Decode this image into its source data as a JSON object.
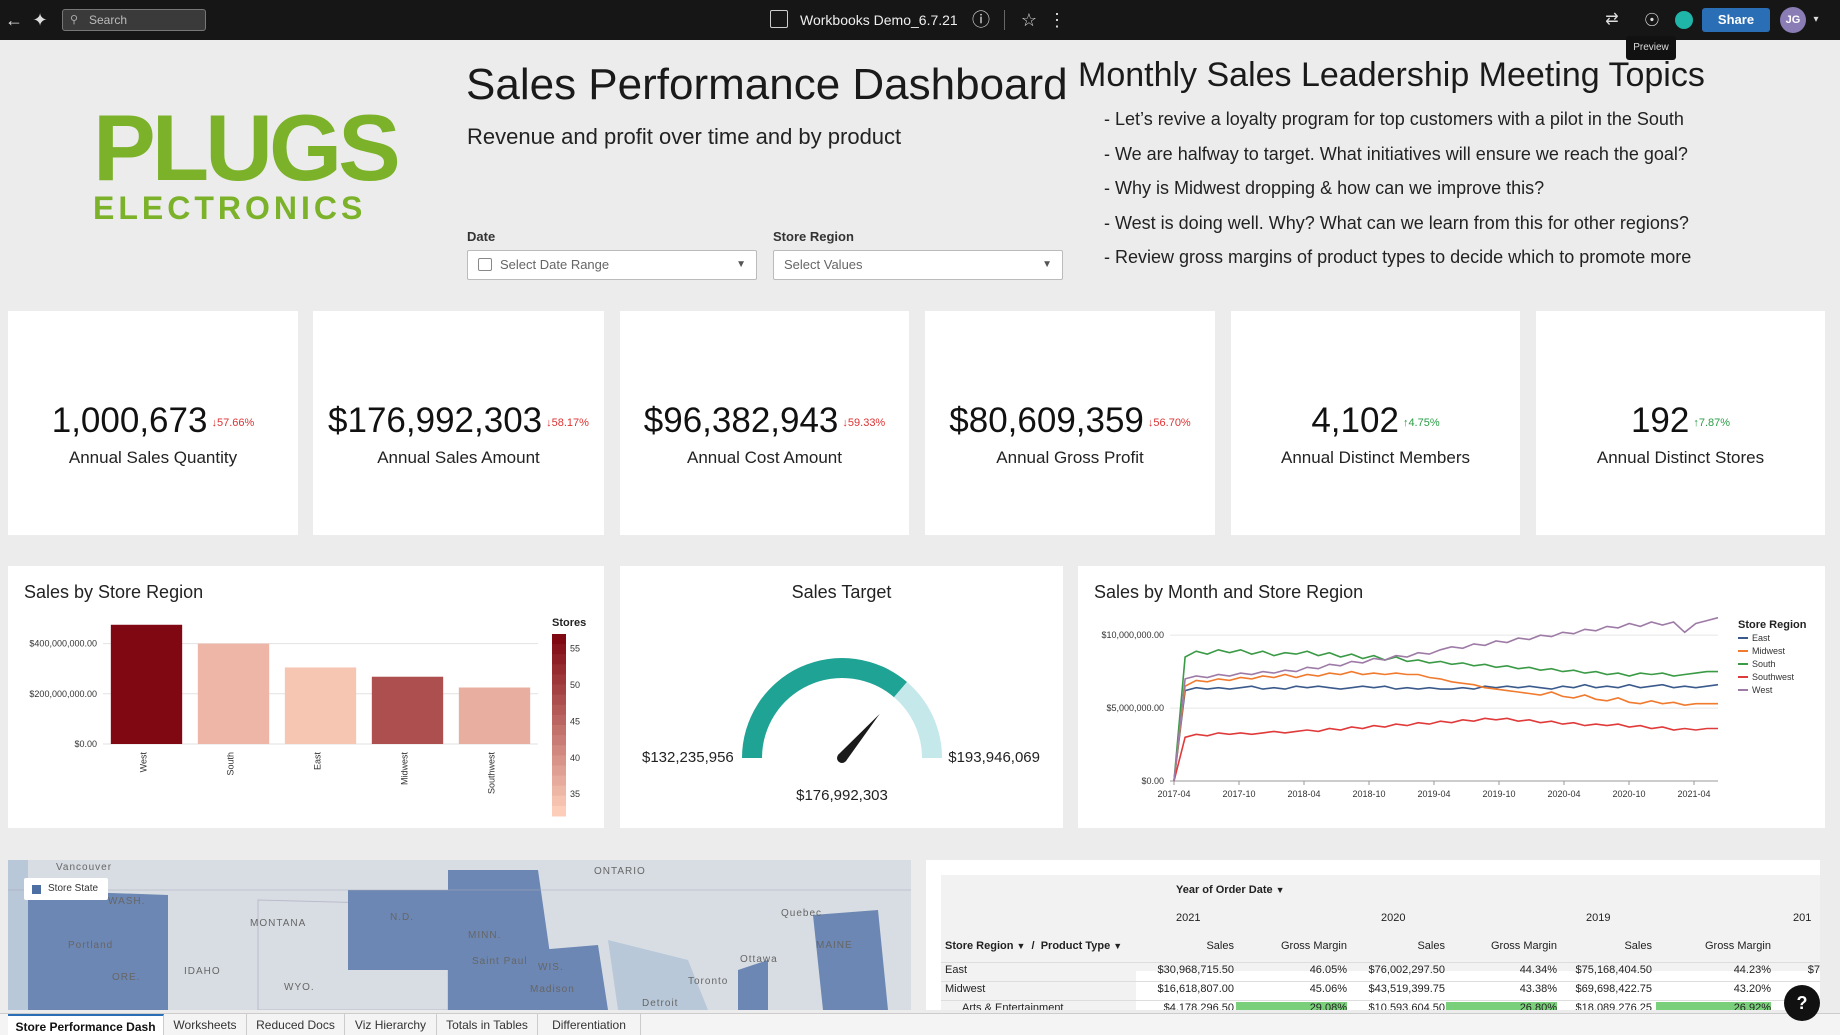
{
  "topbar": {
    "search_placeholder": "Search",
    "workbook_title": "Workbooks Demo_6.7.21",
    "share_label": "Share",
    "avatar_initials": "JG",
    "tooltip": "Preview"
  },
  "header": {
    "logo_top": "PLUGS",
    "logo_bottom": "ELECTRONICS",
    "title": "Sales Performance Dashboard",
    "subtitle": "Revenue and profit over time and by product",
    "date_label": "Date",
    "date_placeholder": "Select Date Range",
    "region_label": "Store Region",
    "region_placeholder": "Select Values"
  },
  "topics": {
    "title": "Monthly Sales Leadership Meeting Topics",
    "items": [
      "- Let’s revive a loyalty program for top customers with a pilot in the South",
      "- We are halfway to target. What initiatives will ensure we reach the goal?",
      "- Why is Midwest dropping & how can we improve this?",
      "- West is doing well. Why? What can we learn from this for other regions?",
      "- Review gross margins of product types to decide which to promote more"
    ]
  },
  "kpis": [
    {
      "value": "1,000,673",
      "delta": "↓57.66%",
      "direction": "down",
      "label": "Annual Sales Quantity"
    },
    {
      "value": "$176,992,303",
      "delta": "↓58.17%",
      "direction": "down",
      "label": "Annual Sales Amount"
    },
    {
      "value": "$96,382,943",
      "delta": "↓59.33%",
      "direction": "down",
      "label": "Annual Cost Amount"
    },
    {
      "value": "$80,609,359",
      "delta": "↓56.70%",
      "direction": "down",
      "label": "Annual Gross Profit"
    },
    {
      "value": "4,102",
      "delta": "↑4.75%",
      "direction": "up",
      "label": "Annual Distinct Members"
    },
    {
      "value": "192",
      "delta": "↑7.87%",
      "direction": "up",
      "label": "Annual Distinct Stores"
    }
  ],
  "chart_data": [
    {
      "type": "bar",
      "title": "Sales by Store Region",
      "categories": [
        "West",
        "South",
        "East",
        "Midwest",
        "Southwest"
      ],
      "values": [
        475000000,
        400000000,
        305000000,
        268000000,
        225000000
      ],
      "color_values": [
        57,
        35,
        33,
        48,
        36
      ],
      "color_legend_title": "Stores",
      "color_legend_ticks": [
        "55",
        "50",
        "45",
        "40",
        "35"
      ],
      "color_range": [
        32,
        57
      ],
      "y_ticks": [
        {
          "value": 0,
          "label": "$0.00"
        },
        {
          "value": 200000000,
          "label": "$200,000,000.00"
        },
        {
          "value": 400000000,
          "label": "$400,000,000.00"
        }
      ],
      "ylim": [
        0,
        490000000
      ]
    },
    {
      "type": "gauge",
      "title": "Sales Target",
      "min_label": "$132,235,956",
      "max_label": "$193,946,069",
      "value_label": "$176,992,303",
      "min": 132235956,
      "max": 193946069,
      "value": 176992303,
      "colors": {
        "filled": "#1fa395",
        "remaining": "#c5e8ea"
      }
    },
    {
      "type": "line",
      "title": "Sales by Month and Store Region",
      "legend_title": "Store Region",
      "legend_position": "right",
      "x_ticks": [
        "2017-04",
        "2017-10",
        "2018-04",
        "2018-10",
        "2019-04",
        "2019-10",
        "2020-04",
        "2020-10",
        "2021-04"
      ],
      "y_ticks": [
        {
          "value": 0,
          "label": "$0.00"
        },
        {
          "value": 5000000,
          "label": "$5,000,000.00"
        },
        {
          "value": 10000000,
          "label": "$10,000,000.00"
        }
      ],
      "ylim": [
        0,
        12000000
      ],
      "series": [
        {
          "name": "East",
          "color": "#3b5a8c",
          "values": [
            0,
            6200000,
            6400000,
            6300000,
            6400000,
            6300000,
            6400000,
            6500000,
            6300000,
            6400000,
            6300000,
            6500000,
            6400000,
            6500000,
            6400000,
            6300000,
            6400000,
            6500000,
            6400000,
            6500000,
            6300000,
            6400000,
            6300000,
            6400000,
            6300000,
            6300000,
            6400000,
            6300000,
            6500000,
            6400000,
            6500000,
            6400000,
            6500000,
            6400000,
            6300000,
            6500000,
            6400000,
            6600000,
            6400000,
            6500000,
            6400000,
            6600000,
            6400000,
            6500000,
            6600000,
            6400000,
            6500000,
            6400000,
            6500000,
            6600000
          ]
        },
        {
          "name": "Midwest",
          "color": "#f07a2e",
          "values": [
            0,
            6500000,
            6900000,
            6800000,
            7000000,
            6900000,
            7100000,
            7000000,
            7200000,
            7100000,
            7300000,
            7100000,
            7300000,
            7200000,
            7400000,
            7300000,
            7500000,
            7300000,
            7400000,
            7300000,
            7400000,
            7300000,
            7300000,
            7100000,
            7000000,
            6800000,
            6700000,
            6600000,
            6400000,
            6300000,
            6200000,
            6100000,
            6000000,
            5900000,
            6100000,
            5800000,
            5700000,
            5900000,
            5600000,
            5500000,
            5700000,
            5400000,
            5300000,
            5500000,
            5300000,
            5400000,
            5200000,
            5300000,
            5300000,
            5300000
          ]
        },
        {
          "name": "South",
          "color": "#3a9a45",
          "values": [
            0,
            8500000,
            8900000,
            8700000,
            9000000,
            8800000,
            9000000,
            8700000,
            8900000,
            8600000,
            8800000,
            8700000,
            8900000,
            8600000,
            8800000,
            8500000,
            8700000,
            8400000,
            8600000,
            8300000,
            8500000,
            8200000,
            8300000,
            8100000,
            8200000,
            8000000,
            8100000,
            7900000,
            8000000,
            7800000,
            7900000,
            7700000,
            7800000,
            7600000,
            7700000,
            7500000,
            7600000,
            7400000,
            7500000,
            7300000,
            7400000,
            7200000,
            7400000,
            7300000,
            7400000,
            7200000,
            7300000,
            7400000,
            7500000,
            7500000
          ]
        },
        {
          "name": "Southwest",
          "color": "#e03a3a",
          "values": [
            0,
            3000000,
            3200000,
            3100000,
            3300000,
            3200000,
            3300000,
            3200000,
            3300000,
            3400000,
            3300000,
            3400000,
            3500000,
            3400000,
            3600000,
            3500000,
            3700000,
            3600000,
            3800000,
            3700000,
            3900000,
            3800000,
            4000000,
            3900000,
            4100000,
            4000000,
            4200000,
            4100000,
            4300000,
            4200000,
            4300000,
            4100000,
            4200000,
            4000000,
            4100000,
            3900000,
            4000000,
            3800000,
            3900000,
            3800000,
            3900000,
            3700000,
            3800000,
            3600000,
            3700000,
            3500000,
            3600000,
            3500000,
            3600000,
            3600000
          ]
        },
        {
          "name": "West",
          "color": "#9e7ba6",
          "values": [
            0,
            7000000,
            7200000,
            7100000,
            7300000,
            7200000,
            7400000,
            7300000,
            7500000,
            7400000,
            7600000,
            7500000,
            7800000,
            7700000,
            8000000,
            7900000,
            8200000,
            8100000,
            8400000,
            8300000,
            8600000,
            8500000,
            8800000,
            8700000,
            9000000,
            9200000,
            9100000,
            9400000,
            9300000,
            9600000,
            9500000,
            9800000,
            9700000,
            10000000,
            9900000,
            10200000,
            10100000,
            10400000,
            10300000,
            10600000,
            10500000,
            10800000,
            10600000,
            10900000,
            10700000,
            10900000,
            10200000,
            10800000,
            11000000,
            11200000
          ]
        }
      ]
    }
  ],
  "map": {
    "legend": "Store State",
    "labels": [
      "Vancouver",
      "WASH.",
      "Portland",
      "ORE.",
      "IDAHO",
      "MONTANA",
      "WYO.",
      "N.D.",
      "MINN.",
      "WIS.",
      "Saint Paul",
      "Madison",
      "ONTARIO",
      "Quebec",
      "Ottawa",
      "Toronto",
      "MAINE",
      "Detroit"
    ],
    "colors": {
      "state_fill": "#6c87b3",
      "land": "#d8dde3",
      "water": "#b8c8d8"
    }
  },
  "pivot": {
    "column_group": "Year of Order Date",
    "row_headers": [
      "Store Region",
      "Product Type"
    ],
    "years": [
      "2021",
      "2020",
      "2019",
      "201"
    ],
    "measure_headers": [
      "Sales",
      "Gross Margin",
      "Sales",
      "Gross Margin",
      "Sales",
      "Gross Margin"
    ],
    "rows": [
      {
        "label": "East",
        "cells": [
          "$30,968,715.50",
          "46.05%",
          "$76,002,297.50",
          "44.34%",
          "$75,168,404.50",
          "44.23%",
          "$7"
        ]
      },
      {
        "label": "Midwest",
        "cells": [
          "$16,618,807.00",
          "45.06%",
          "$43,519,399.75",
          "43.38%",
          "$69,698,422.75",
          "43.20%",
          ""
        ]
      },
      {
        "label": "Arts & Entertainment",
        "cells": [
          "$4,178,296.50",
          "29.08%",
          "$10,593,604.50",
          "26.80%",
          "$18,089,276.25",
          "26.92%",
          ""
        ]
      }
    ],
    "highlight_color": "#7ad07a"
  },
  "tabs": [
    "Store Performance Dash",
    "Worksheets",
    "Reduced Docs",
    "Viz Hierarchy",
    "Totals in Tables",
    "Differentiation"
  ],
  "help_label": "?"
}
